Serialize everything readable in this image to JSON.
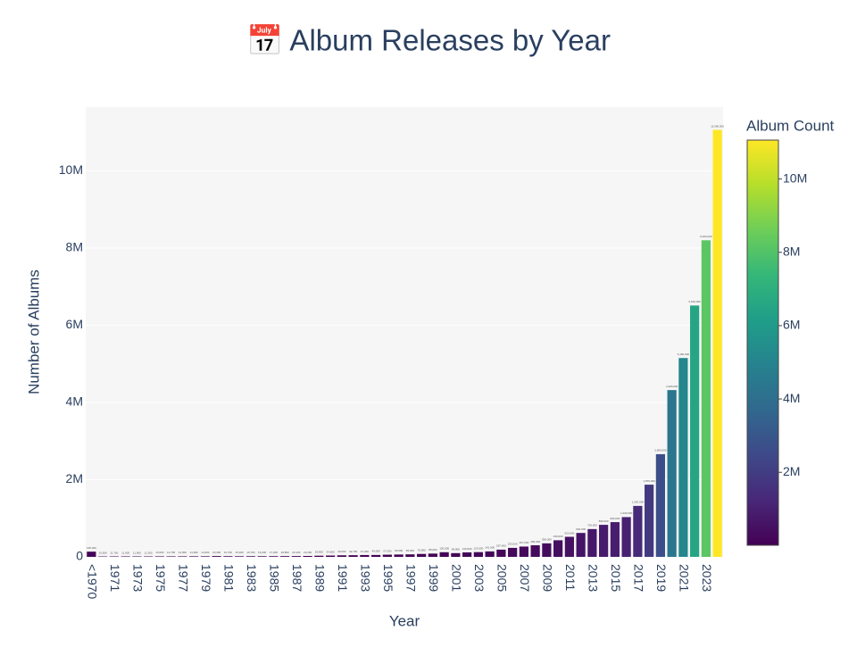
{
  "chart_data": {
    "type": "bar",
    "title": "📅 Album Releases by Year",
    "x_label": "Year",
    "y_label": "Number of Albums",
    "colorbar_title": "Album Count",
    "colorscale": "viridis",
    "categories": [
      "<1970",
      null,
      "1971",
      null,
      "1973",
      null,
      "1975",
      null,
      "1977",
      null,
      "1979",
      null,
      "1981",
      null,
      "1983",
      null,
      "1985",
      null,
      "1987",
      null,
      "1989",
      null,
      "1991",
      null,
      "1993",
      null,
      "1995",
      null,
      "1997",
      null,
      "1999",
      null,
      "2001",
      null,
      "2003",
      null,
      "2005",
      null,
      "2007",
      null,
      "2009",
      null,
      "2011",
      null,
      "2013",
      null,
      "2015",
      null,
      "2017",
      null,
      "2019",
      null,
      "2021",
      null,
      "2023",
      null
    ],
    "values": [
      135000,
      10500,
      11700,
      11900,
      11900,
      11300,
      13000,
      12700,
      12900,
      13900,
      14600,
      20300,
      16700,
      15400,
      16700,
      16200,
      17200,
      18800,
      20100,
      23200,
      29800,
      34600,
      40000,
      42700,
      47300,
      49000,
      57000,
      60600,
      65000,
      75900,
      85000,
      120000,
      96800,
      116000,
      123000,
      141000,
      187000,
      233000,
      267000,
      300000,
      350000,
      430000,
      520000,
      620000,
      720000,
      830000,
      900000,
      1030000,
      1320000,
      1870000,
      2660000,
      4320000,
      5150000,
      6510000,
      8200000,
      11060000
    ],
    "value_labels": [
      "135,000",
      "10,500",
      "11,700",
      "11,900",
      "11,900",
      "11,300",
      "13,000",
      "12,700",
      "12,900",
      "13,900",
      "14,600",
      "20,300",
      "16,700",
      "15,400",
      "16,700",
      "16,200",
      "17,200",
      "18,800",
      "20,100",
      "23,200",
      "29,800",
      "34,600",
      "40,000",
      "42,700",
      "47,300",
      "49,000",
      "57,000",
      "60,600",
      "65,000",
      "75,900",
      "85,000",
      "120,000",
      "96,800",
      "116,000",
      "123,000",
      "141,000",
      "187,000",
      "233,000",
      "267,000",
      "300,000",
      "350,000",
      "430,000",
      "520,000",
      "620,000",
      "720,000",
      "830,000",
      "900,000",
      "1,030,000",
      "1,320,000",
      "1,870,000",
      "2,660,000",
      "4,320,000",
      "5,150,000",
      "6,510,000",
      "8,200,000",
      "11,060,000"
    ],
    "ylim": [
      0,
      11650000
    ],
    "yticks": [
      0,
      {
        "value": 2000000,
        "label": "2M"
      },
      {
        "value": 4000000,
        "label": "4M"
      },
      {
        "value": 6000000,
        "label": "6M"
      },
      {
        "value": 8000000,
        "label": "8M"
      },
      {
        "value": 10000000,
        "label": "10M"
      }
    ],
    "colorbar_ticks": [
      {
        "value": 2000000,
        "label": "2M"
      },
      {
        "value": 4000000,
        "label": "4M"
      },
      {
        "value": 6000000,
        "label": "6M"
      },
      {
        "value": 8000000,
        "label": "8M"
      },
      {
        "value": 10000000,
        "label": "10M"
      }
    ],
    "grid": true
  }
}
